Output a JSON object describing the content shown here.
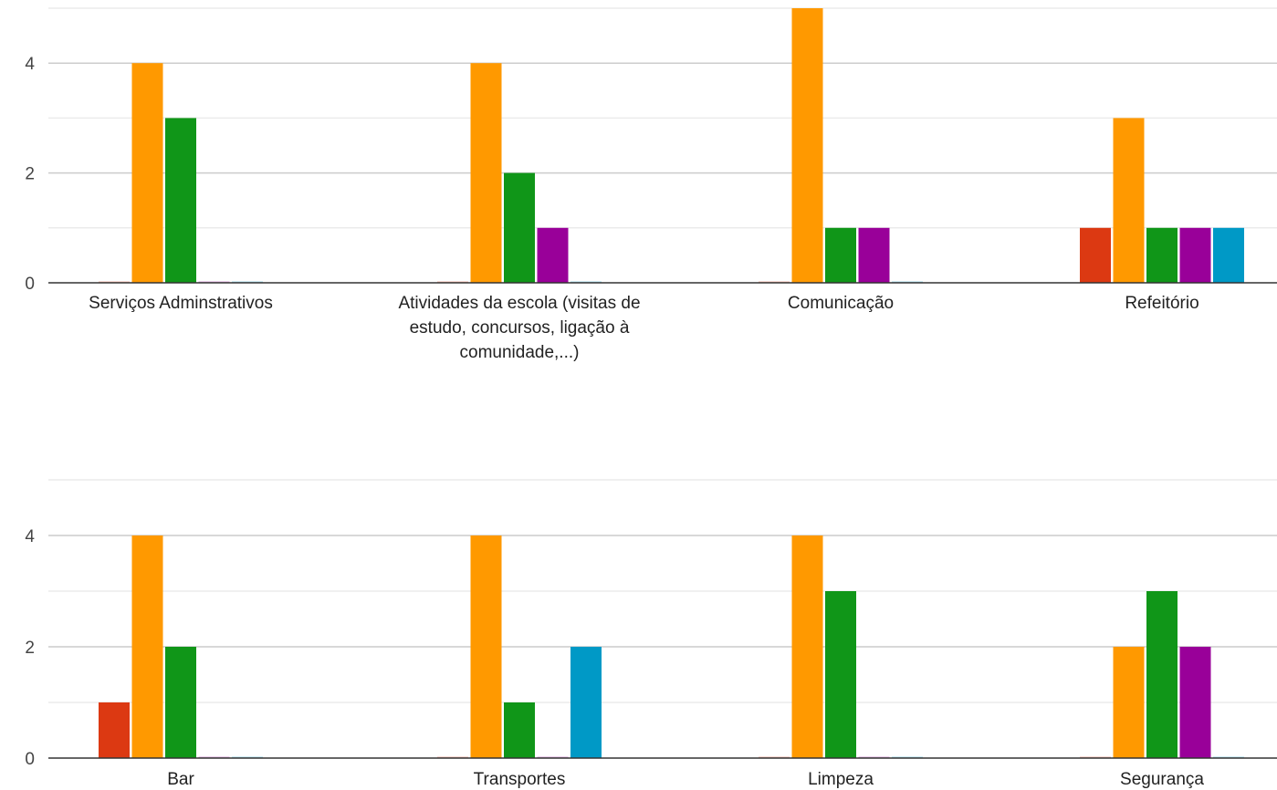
{
  "colors": {
    "series": [
      "#dc3912",
      "#ff9900",
      "#109618",
      "#990099",
      "#0099c6"
    ],
    "grid_major": "#cccccc",
    "grid_minor": "#ebebeb",
    "baseline": "#333333"
  },
  "chart_data": [
    {
      "type": "bar",
      "categories": [
        "Serviços Adminstrativos",
        "Atividades da escola (visitas de estudo, concursos, ligação à comunidade,...)",
        "Comunicação",
        "Refeitório"
      ],
      "category_lines": [
        [
          "Serviços Adminstrativos"
        ],
        [
          "Atividades da escola (visitas de",
          "estudo, concursos, ligação à",
          "comunidade,...)"
        ],
        [
          "Comunicação"
        ],
        [
          "Refeitório"
        ]
      ],
      "series": [
        {
          "values": [
            0,
            0,
            0,
            1
          ]
        },
        {
          "values": [
            4,
            4,
            5,
            3
          ]
        },
        {
          "values": [
            3,
            2,
            1,
            1
          ]
        },
        {
          "values": [
            0,
            1,
            1,
            1
          ]
        },
        {
          "values": [
            0,
            0,
            0,
            1
          ]
        }
      ],
      "yticks": [
        "0",
        "2",
        "4"
      ],
      "ylim": [
        0,
        5
      ],
      "grid": true,
      "title": "",
      "xlabel": "",
      "ylabel": ""
    },
    {
      "type": "bar",
      "categories": [
        "Bar",
        "Transportes",
        "Limpeza",
        "Segurança"
      ],
      "category_lines": [
        [
          "Bar"
        ],
        [
          "Transportes"
        ],
        [
          "Limpeza"
        ],
        [
          "Segurança"
        ]
      ],
      "series": [
        {
          "values": [
            1,
            0,
            0,
            0
          ]
        },
        {
          "values": [
            4,
            4,
            4,
            2
          ]
        },
        {
          "values": [
            2,
            1,
            3,
            3
          ]
        },
        {
          "values": [
            0,
            0,
            0,
            2
          ]
        },
        {
          "values": [
            0,
            2,
            0,
            0
          ]
        }
      ],
      "yticks": [
        "0",
        "2",
        "4"
      ],
      "ylim": [
        0,
        5
      ],
      "grid": true,
      "title": "",
      "xlabel": "",
      "ylabel": ""
    }
  ]
}
